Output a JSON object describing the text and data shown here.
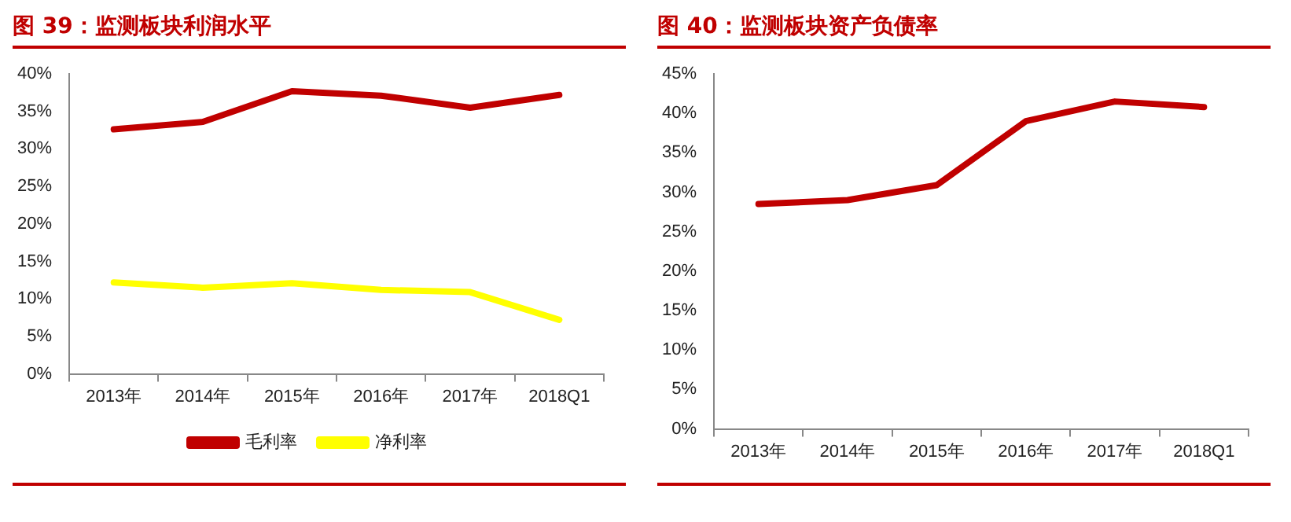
{
  "chart_data": [
    {
      "type": "line",
      "title": "图 39：监测板块利润水平",
      "categories": [
        "2013年",
        "2014年",
        "2015年",
        "2016年",
        "2017年",
        "2018Q1"
      ],
      "series": [
        {
          "name": "毛利率",
          "color": "#c00000",
          "values": [
            32.6,
            33.6,
            37.7,
            37.1,
            35.5,
            37.2
          ]
        },
        {
          "name": "净利率",
          "color": "#ffff00",
          "values": [
            12.2,
            11.5,
            12.1,
            11.2,
            10.9,
            7.2
          ]
        }
      ],
      "ylim": [
        0,
        40
      ],
      "yticks": [
        {
          "value": 0,
          "label": "0%"
        },
        {
          "value": 5,
          "label": "5%"
        },
        {
          "value": 10,
          "label": "10%"
        },
        {
          "value": 15,
          "label": "15%"
        },
        {
          "value": 20,
          "label": "20%"
        },
        {
          "value": 25,
          "label": "25%"
        },
        {
          "value": 30,
          "label": "30%"
        },
        {
          "value": 35,
          "label": "35%"
        },
        {
          "value": 40,
          "label": "40%"
        }
      ],
      "grid": false,
      "legend": "bottom",
      "marker": "none",
      "line_style": "solid"
    },
    {
      "type": "line",
      "title": "图 40：监测板块资产负债率",
      "categories": [
        "2013年",
        "2014年",
        "2015年",
        "2016年",
        "2017年",
        "2018Q1"
      ],
      "series": [
        {
          "color": "#c00000",
          "values": [
            28.5,
            29.0,
            30.9,
            39.0,
            41.5,
            40.8
          ]
        }
      ],
      "ylim": [
        0,
        45
      ],
      "yticks": [
        {
          "value": 0,
          "label": "0%"
        },
        {
          "value": 5,
          "label": "5%"
        },
        {
          "value": 10,
          "label": "10%"
        },
        {
          "value": 15,
          "label": "15%"
        },
        {
          "value": 20,
          "label": "20%"
        },
        {
          "value": 25,
          "label": "25%"
        },
        {
          "value": 30,
          "label": "30%"
        },
        {
          "value": 35,
          "label": "35%"
        },
        {
          "value": 40,
          "label": "40%"
        },
        {
          "value": 45,
          "label": "45%"
        }
      ],
      "grid": false,
      "legend": false,
      "marker": "none",
      "line_style": "solid"
    }
  ]
}
